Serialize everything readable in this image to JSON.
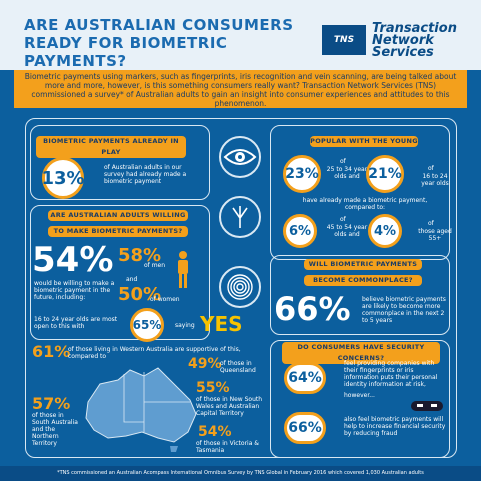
{
  "header": {
    "title": "ARE AUSTRALIAN CONSUMERS READY FOR BIOMETRIC PAYMENTS?",
    "logo_abbrev": "TNS",
    "brand": "Transaction Network Services"
  },
  "intro": "Biometric payments using markers, such as fingerprints, iris recognition and vein scanning, are being talked about more and more, however, is this something consumers really want? Transaction Network Services (TNS) commissioned a survey* of Australian adults to gain an insight into consumer experiences and attitudes to this phenomenon.",
  "already": {
    "heading": "BIOMETRIC PAYMENTS ALREADY IN PLAY",
    "pct": "13%",
    "text": "of Australian adults in our survey had already made a biometric payment"
  },
  "young": {
    "heading": "POPULAR WITH THE YOUNG",
    "a_pct": "23%",
    "a_pre": "of",
    "a_text": "25 to 34 year olds and",
    "b_pct": "21%",
    "b_pre": "of",
    "b_text": "16 to 24 year olds",
    "mid": "have already made a biometric payment, compared to:",
    "c_pct": "6%",
    "c_pre": "of",
    "c_text": "45 to 54 year olds and",
    "d_pct": "4%",
    "d_pre": "of",
    "d_text": "those aged 55+"
  },
  "willing": {
    "heading1": "ARE AUSTRALIAN ADULTS WILLING",
    "heading2": "TO MAKE BIOMETRIC PAYMENTS?",
    "pct": "54%",
    "text": "would be willing to make a biometric payment in the future, including:",
    "men_pct": "58%",
    "men_label": "of men",
    "and": "and",
    "women_pct": "50%",
    "women_label": "of women",
    "young_text": "16 to 24 year olds are most open to this with",
    "young_pct": "65%",
    "saying": "saying",
    "yes": "YES"
  },
  "commonplace": {
    "heading1": "WILL BIOMETRIC PAYMENTS",
    "heading2": "BECOME COMMONPLACE?",
    "pct": "66%",
    "text": "believe biometric payments are likely to become more commonplace in the next 2 to 5 years"
  },
  "security": {
    "heading": "DO CONSUMERS HAVE SECURITY CONCERNS?",
    "a_pct": "64%",
    "a_text": "feel providing companies with their fingerprints or iris information puts their personal identity information at risk,",
    "however": "however...",
    "b_pct": "66%",
    "b_text": "also feel biometric payments will help to increase financial security by reducing fraud"
  },
  "states": {
    "wa_pct": "61%",
    "wa_text": "of those living in Western Australia are supportive of this, compared to",
    "qld_pct": "49%",
    "qld_text": "of those in Queensland",
    "nsw_pct": "55%",
    "nsw_text": "of those in New South Wales and Australian Capital Territory",
    "sa_pct": "57%",
    "sa_text": "of those in South Australia and the Northern Territory",
    "vic_pct": "54%",
    "vic_text": "of those in Victoria & Tasmania"
  },
  "footer": "*TNS commissioned an Australian Acompass International Omnibus Survey by TNS Global in February 2016 which covered 1,030 Australian adults",
  "colors": {
    "background": "#0c5f9e",
    "accent": "#f3a01c",
    "yes": "#f6c200"
  },
  "icons": [
    "eye-icon",
    "fingerprint-icon",
    "vein-icon",
    "mask-icon"
  ]
}
